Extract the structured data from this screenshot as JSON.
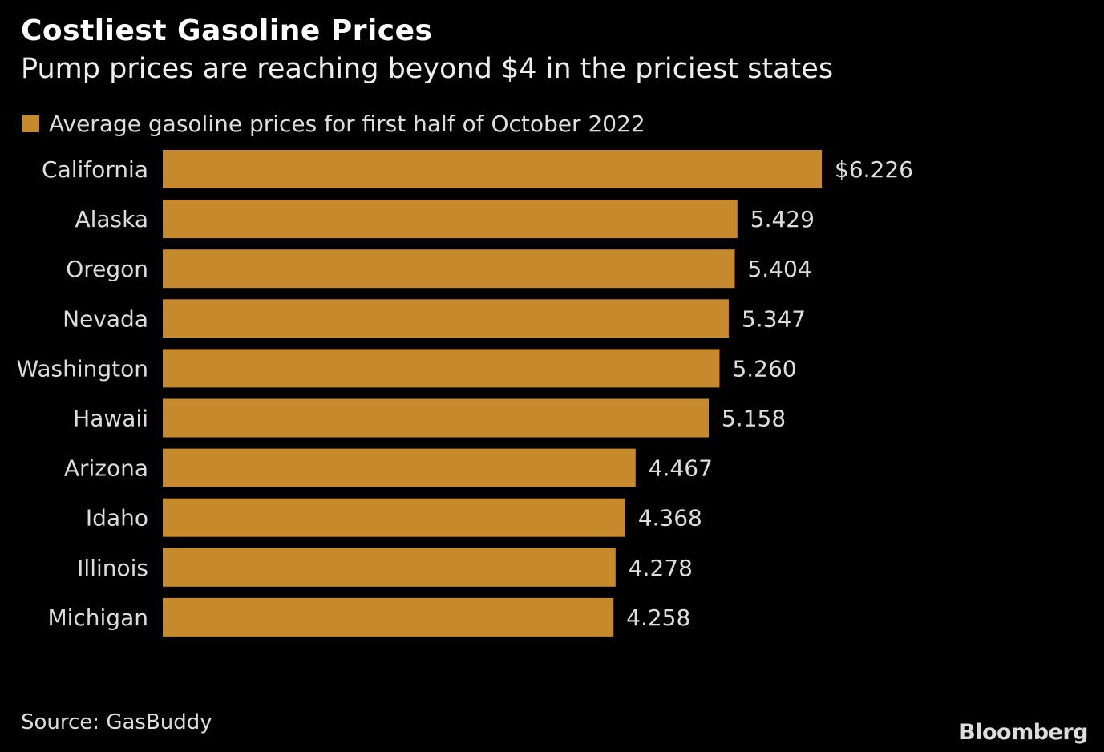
{
  "colors": {
    "bar": "#c68a2c",
    "background": "#000000",
    "text": "#dddddd"
  },
  "chart_data": {
    "type": "bar",
    "orientation": "horizontal",
    "title": "Costliest Gasoline Prices",
    "subtitle": "Pump prices are reaching beyond $4 in the priciest states",
    "legend": [
      "Average gasoline prices for first half of October 2022"
    ],
    "legend_position": "top-left",
    "categories": [
      "California",
      "Alaska",
      "Oregon",
      "Nevada",
      "Washington",
      "Hawaii",
      "Arizona",
      "Idaho",
      "Illinois",
      "Michigan"
    ],
    "values": [
      6.226,
      5.429,
      5.404,
      5.347,
      5.26,
      5.158,
      4.467,
      4.368,
      4.278,
      4.258
    ],
    "value_labels": [
      "$6.226",
      "5.429",
      "5.404",
      "5.347",
      "5.260",
      "5.158",
      "4.467",
      "4.368",
      "4.278",
      "4.258"
    ],
    "xlim": [
      0,
      6.226
    ],
    "grid": false,
    "source": "Source: GasBuddy",
    "logo": "Bloomberg"
  }
}
